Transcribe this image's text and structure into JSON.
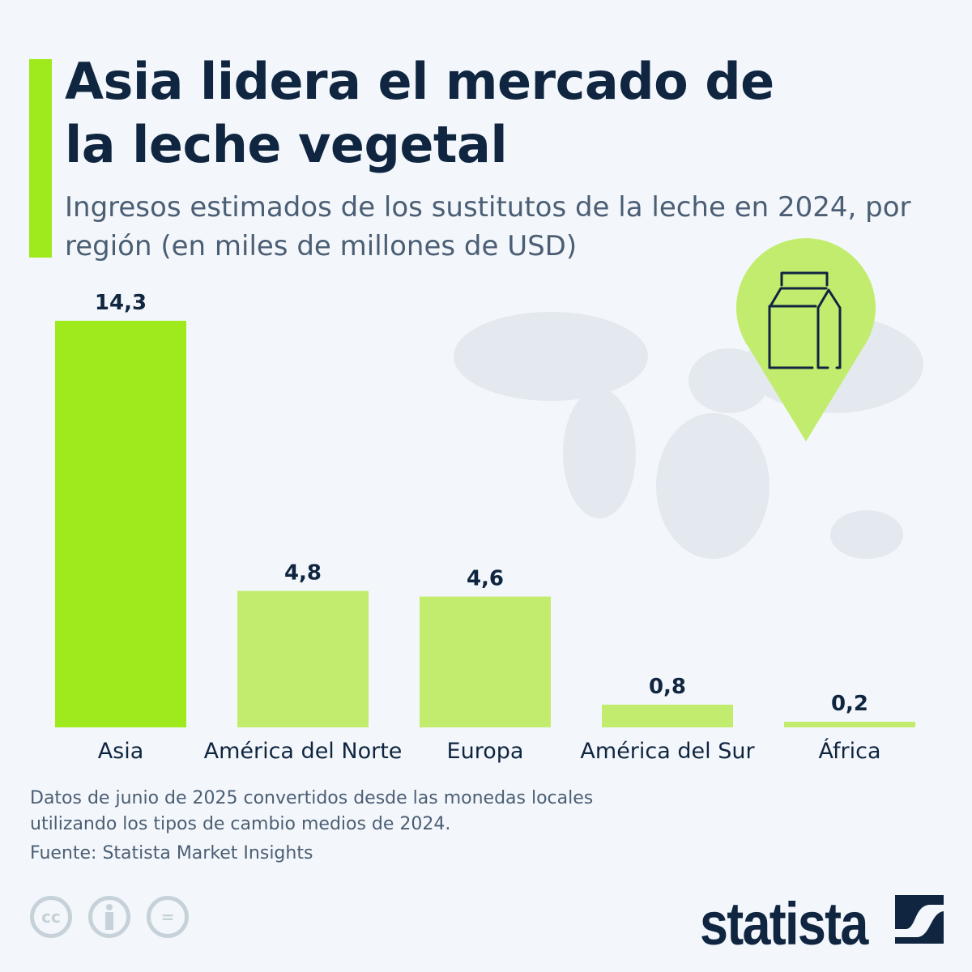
{
  "title": "Asia lidera el mercado de la leche vegetal",
  "subtitle": "Ingresos estimados de los sustitutos de la leche en 2024, por región (en miles de millones de USD)",
  "chart_data": {
    "type": "bar",
    "categories": [
      "Asia",
      "América del Norte",
      "Europa",
      "América del Sur",
      "África"
    ],
    "values": [
      14.3,
      4.8,
      4.6,
      0.8,
      0.2
    ],
    "value_labels": [
      "14,3",
      "4,8",
      "4,6",
      "0,8",
      "0,2"
    ],
    "ylim": [
      0,
      14.3
    ],
    "grid": false,
    "colors": {
      "highlight": "#9fea1c",
      "default": "#c2ec6e"
    }
  },
  "footnote": "Datos de junio de 2025 convertidos desde las monedas locales utilizando los tipos de cambio medios de 2024.",
  "source": "Fuente: Statista Market Insights",
  "license_icons": [
    "cc-icon",
    "by-icon",
    "nd-icon"
  ],
  "license_labels": {
    "cc": "cc",
    "nd": "="
  },
  "logo": "statista",
  "colors": {
    "title": "#0f2540",
    "text": "#4b5e74",
    "background": "#f3f7fb",
    "pin": "#c2ec6e"
  }
}
